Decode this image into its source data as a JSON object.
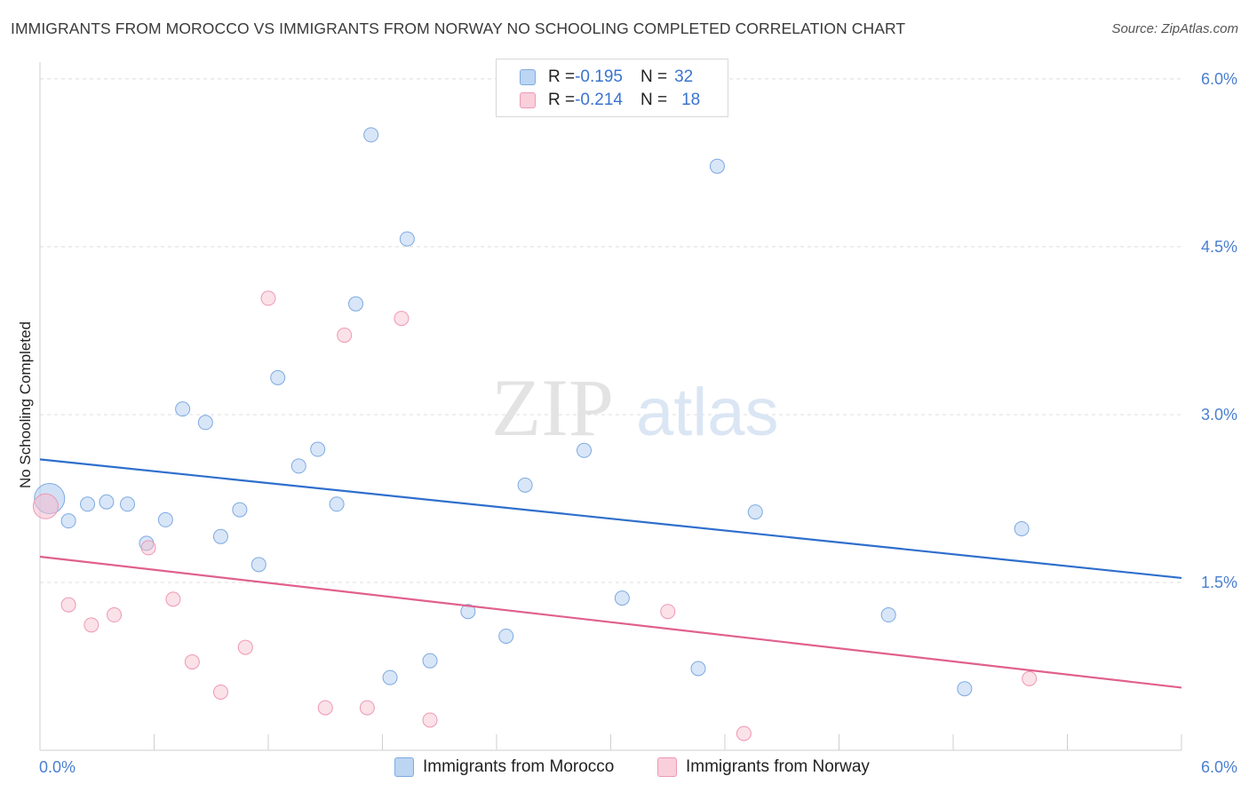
{
  "title": "IMMIGRANTS FROM MOROCCO VS IMMIGRANTS FROM NORWAY NO SCHOOLING COMPLETED CORRELATION CHART",
  "source": "Source: ZipAtlas.com",
  "watermark": {
    "zip": "ZIP",
    "atlas": "atlas"
  },
  "legend": {
    "rows": [
      {
        "r_label": "R = ",
        "r_value": "-0.195",
        "n_label": "N = ",
        "n_value": "32"
      },
      {
        "r_label": "R = ",
        "r_value": "-0.214",
        "n_label": "N = ",
        "n_value": "18"
      }
    ]
  },
  "chart_data": {
    "type": "scatter",
    "xlabel": "",
    "ylabel": "No Schooling Completed",
    "xlim": [
      0,
      6
    ],
    "ylim": [
      0,
      6.15
    ],
    "x_tick_labels": [
      "0.0%",
      "6.0%"
    ],
    "y_ticks": [
      1.5,
      3.0,
      4.5,
      6.0
    ],
    "y_tick_labels": [
      "1.5%",
      "3.0%",
      "4.5%",
      "6.0%"
    ],
    "grid": true,
    "legend_position": "top-center",
    "series": [
      {
        "name": "Immigrants from Morocco",
        "color": "#a9c8ef",
        "stroke": "#7eaae0",
        "line_color": "#2f6fcc",
        "trend": [
          [
            0,
            2.6
          ],
          [
            6,
            1.54
          ]
        ],
        "points": [
          [
            0.05,
            2.25
          ],
          [
            0.15,
            2.05
          ],
          [
            0.25,
            2.2
          ],
          [
            0.35,
            2.22
          ],
          [
            0.46,
            2.2
          ],
          [
            0.56,
            1.85
          ],
          [
            0.66,
            2.06
          ],
          [
            0.75,
            3.05
          ],
          [
            0.87,
            2.93
          ],
          [
            0.95,
            1.91
          ],
          [
            1.05,
            2.15
          ],
          [
            1.15,
            1.66
          ],
          [
            1.25,
            3.33
          ],
          [
            1.36,
            2.54
          ],
          [
            1.46,
            2.69
          ],
          [
            1.56,
            2.2
          ],
          [
            1.66,
            3.99
          ],
          [
            1.74,
            5.5
          ],
          [
            1.84,
            0.65
          ],
          [
            1.93,
            4.57
          ],
          [
            2.05,
            0.8
          ],
          [
            2.25,
            1.24
          ],
          [
            2.45,
            1.02
          ],
          [
            2.55,
            2.37
          ],
          [
            2.86,
            2.68
          ],
          [
            3.06,
            1.36
          ],
          [
            3.46,
            0.73
          ],
          [
            3.56,
            5.22
          ],
          [
            3.76,
            2.13
          ],
          [
            4.46,
            1.21
          ],
          [
            4.86,
            0.55
          ],
          [
            5.16,
            1.98
          ]
        ]
      },
      {
        "name": "Immigrants from Norway",
        "color": "#f6bccd",
        "stroke": "#ee98b4",
        "line_color": "#e0608e",
        "trend": [
          [
            0,
            1.73
          ],
          [
            6,
            0.56
          ]
        ],
        "points": [
          [
            0.03,
            2.18
          ],
          [
            0.15,
            1.3
          ],
          [
            0.27,
            1.12
          ],
          [
            0.39,
            1.21
          ],
          [
            0.57,
            1.81
          ],
          [
            0.7,
            1.35
          ],
          [
            0.8,
            0.79
          ],
          [
            0.95,
            0.52
          ],
          [
            1.08,
            0.92
          ],
          [
            1.2,
            4.04
          ],
          [
            1.5,
            0.38
          ],
          [
            1.6,
            3.71
          ],
          [
            1.72,
            0.38
          ],
          [
            1.9,
            3.86
          ],
          [
            2.05,
            0.27
          ],
          [
            3.3,
            1.24
          ],
          [
            3.7,
            0.15
          ],
          [
            5.2,
            0.64
          ]
        ]
      }
    ]
  }
}
